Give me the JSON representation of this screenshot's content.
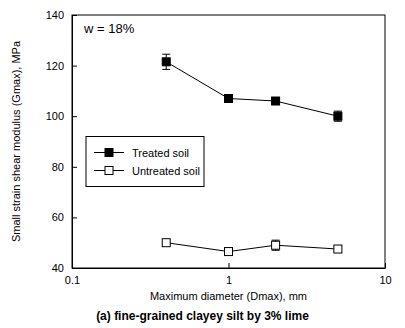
{
  "chart_data": {
    "type": "line",
    "title": "(a) fine-grained clayey silt by 3% lime",
    "x_label": "Maximum diameter (Dmax), mm",
    "y_label": "Small strain shear modulus (Gmax), MPa",
    "annotations": [
      "w = 18%"
    ],
    "log": "x",
    "xlim": [
      0.1,
      10
    ],
    "xticks": [
      0.1,
      1,
      10
    ],
    "ylim": [
      40,
      140
    ],
    "yticks": [
      40,
      60,
      80,
      100,
      120,
      140
    ],
    "grid": false,
    "legend": "left",
    "x": [
      0.4,
      1,
      2,
      5
    ],
    "series": [
      {
        "name": "Treated soil",
        "color": "#000000",
        "marker": "square",
        "line_style": "solid",
        "values": [
          121.5,
          107,
          106,
          100
        ],
        "errors": [
          3,
          0.6,
          1,
          2
        ]
      },
      {
        "name": "Untreated soil",
        "color": "#000000",
        "marker": "square-open",
        "line_style": "solid",
        "values": [
          50,
          46.5,
          49,
          47.5
        ],
        "errors": [
          0.6,
          1,
          2,
          1
        ]
      }
    ]
  }
}
